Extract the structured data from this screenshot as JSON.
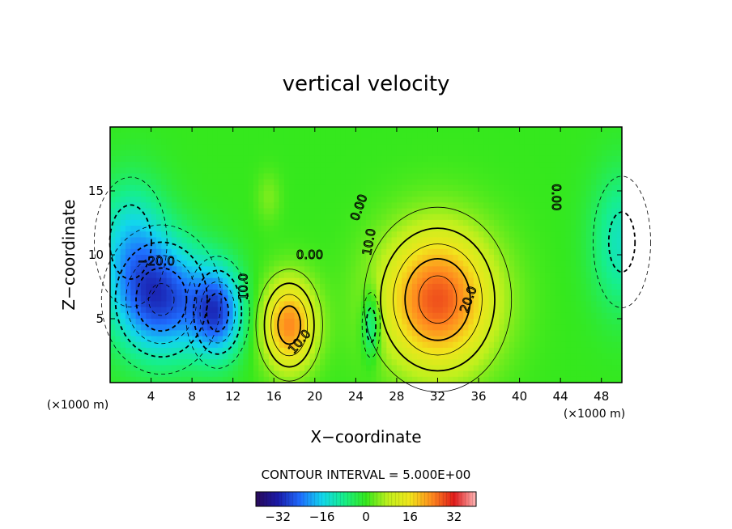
{
  "chart_data": {
    "type": "heatmap",
    "title": "vertical velocity",
    "xlabel": "X−coordinate",
    "ylabel": "Z−coordinate",
    "x_unit": "(×1000 m)",
    "y_unit": "(×1000 m)",
    "xlim": [
      0,
      50
    ],
    "ylim": [
      0,
      20
    ],
    "x_ticks": [
      4,
      8,
      12,
      16,
      20,
      24,
      28,
      32,
      36,
      40,
      44,
      48
    ],
    "y_ticks": [
      5,
      10,
      15
    ],
    "contour_interval_text": "CONTOUR INTERVAL = 5.000E+00",
    "colorbar": {
      "min": -40,
      "max": 40,
      "ticks": [
        -32,
        -16,
        0,
        16,
        32
      ],
      "tick_labels": [
        "−32",
        "−16",
        "0",
        "16",
        "32"
      ],
      "colormap": [
        "#2a0a5a",
        "#1a1aa8",
        "#1f6cff",
        "#12d6ee",
        "#16ef8a",
        "#35e81d",
        "#c0f01d",
        "#f2e51c",
        "#ff8a1e",
        "#e01a1a",
        "#ffb7b7"
      ]
    },
    "features": [
      {
        "kind": "minimum",
        "x": 5,
        "y": 6.5,
        "value": -27,
        "rx": 4.5,
        "ry": 4.5
      },
      {
        "kind": "minimum",
        "x": 10.5,
        "y": 5.5,
        "value": -24,
        "rx": 2.5,
        "ry": 3.5
      },
      {
        "kind": "minimum",
        "x": 2,
        "y": 11,
        "value": -14,
        "rx": 3.5,
        "ry": 5
      },
      {
        "kind": "maximum",
        "x": 17.5,
        "y": 4.5,
        "value": 24,
        "rx": 2.6,
        "ry": 3.5
      },
      {
        "kind": "minimum",
        "x": 25.5,
        "y": 4.5,
        "value": -13,
        "rx": 0.9,
        "ry": 2.6
      },
      {
        "kind": "maximum",
        "x": 32,
        "y": 6.5,
        "value": 28,
        "rx": 5.5,
        "ry": 5.5
      },
      {
        "kind": "minimum",
        "x": 50,
        "y": 11,
        "value": -12,
        "rx": 3,
        "ry": 5.5
      },
      {
        "kind": "maximum",
        "x": 15.5,
        "y": 14.5,
        "value": 4,
        "rx": 1.2,
        "ry": 2
      }
    ],
    "contour_labels": [
      "−20.0",
      "10.0",
      "0.00",
      "0.00",
      "10.0",
      "10.0",
      "20.0",
      "0.00"
    ]
  }
}
